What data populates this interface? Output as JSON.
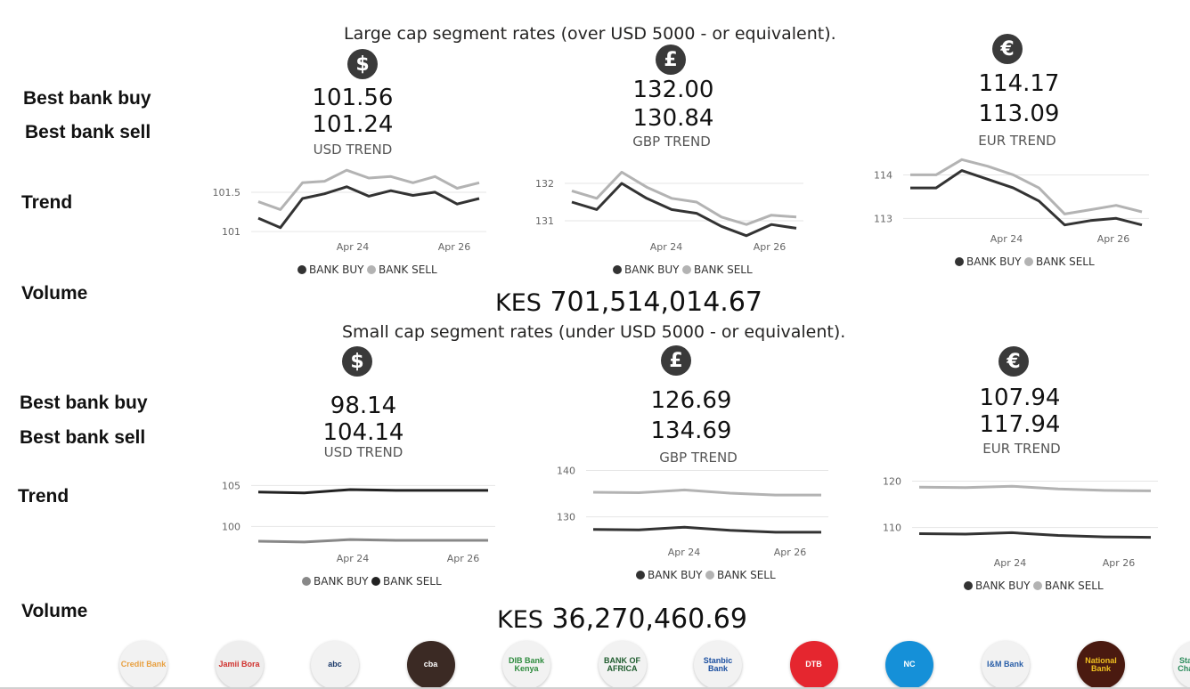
{
  "large": {
    "heading": "Large cap segment rates (over USD 5000 - or equivalent).",
    "row_labels": {
      "buy": "Best bank buy",
      "sell": "Best bank sell",
      "trend": "Trend",
      "volume": "Volume"
    },
    "usd": {
      "icon": "dollar-icon",
      "symbol": "$",
      "buy": "101.56",
      "sell": "101.24",
      "trend_label": "USD TREND"
    },
    "gbp": {
      "icon": "pound-icon",
      "symbol": "£",
      "buy": "132.00",
      "sell": "130.84",
      "trend_label": "GBP TREND"
    },
    "eur": {
      "icon": "euro-icon",
      "symbol": "€",
      "buy": "114.17",
      "sell": "113.09",
      "trend_label": "EUR TREND"
    },
    "volume": {
      "currency": "KES",
      "amount": "701,514,014.67"
    }
  },
  "small": {
    "heading": "Small cap segment rates (under USD 5000 - or equivalent).",
    "row_labels": {
      "buy": "Best bank buy",
      "sell": "Best bank sell",
      "trend": "Trend",
      "volume": "Volume"
    },
    "usd": {
      "icon": "dollar-icon",
      "symbol": "$",
      "buy": "98.14",
      "sell": "104.14",
      "trend_label": "USD TREND"
    },
    "gbp": {
      "icon": "pound-icon",
      "symbol": "£",
      "buy": "126.69",
      "sell": "134.69",
      "trend_label": "GBP TREND"
    },
    "eur": {
      "icon": "euro-icon",
      "symbol": "€",
      "buy": "107.94",
      "sell": "117.94",
      "trend_label": "EUR TREND"
    },
    "volume": {
      "currency": "KES",
      "amount": "36,270,460.69"
    }
  },
  "chart_data": [
    {
      "id": "large-usd",
      "type": "line",
      "x": [
        "Apr 22",
        "Apr 23",
        "Apr 23",
        "Apr 23",
        "Apr 24",
        "Apr 24",
        "Apr 25",
        "Apr 25",
        "Apr 26",
        "Apr 26",
        "Apr 26"
      ],
      "xticks": [
        "Apr 24",
        "Apr 26"
      ],
      "yticks": [
        101.0,
        101.5
      ],
      "ylim": [
        100.9,
        101.85
      ],
      "series": [
        {
          "name": "BANK BUY",
          "color": "#333333",
          "values": [
            101.17,
            101.05,
            101.42,
            101.48,
            101.57,
            101.45,
            101.52,
            101.46,
            101.5,
            101.35,
            101.42
          ]
        },
        {
          "name": "BANK SELL",
          "color": "#b3b3b3",
          "values": [
            101.38,
            101.28,
            101.62,
            101.64,
            101.78,
            101.68,
            101.7,
            101.62,
            101.7,
            101.55,
            101.62
          ]
        }
      ],
      "legend": [
        "BANK BUY",
        "BANK SELL"
      ]
    },
    {
      "id": "large-gbp",
      "type": "line",
      "x": [
        "Apr 22",
        "Apr 23",
        "Apr 23",
        "Apr 24",
        "Apr 24",
        "Apr 25",
        "Apr 25",
        "Apr 26",
        "Apr 26",
        "Apr 27"
      ],
      "xticks": [
        "Apr 24",
        "Apr 26"
      ],
      "yticks": [
        131,
        132
      ],
      "ylim": [
        130.5,
        132.5
      ],
      "series": [
        {
          "name": "BANK BUY",
          "color": "#333333",
          "values": [
            131.5,
            131.3,
            132.0,
            131.6,
            131.3,
            131.2,
            130.85,
            130.6,
            130.9,
            130.8
          ]
        },
        {
          "name": "BANK SELL",
          "color": "#b3b3b3",
          "values": [
            131.8,
            131.6,
            132.3,
            131.9,
            131.6,
            131.5,
            131.1,
            130.9,
            131.15,
            131.1
          ]
        }
      ],
      "legend": [
        "BANK BUY",
        "BANK SELL"
      ]
    },
    {
      "id": "large-eur",
      "type": "line",
      "x": [
        "Apr 22",
        "Apr 23",
        "Apr 23",
        "Apr 24",
        "Apr 24",
        "Apr 25",
        "Apr 25",
        "Apr 26",
        "Apr 26",
        "Apr 27"
      ],
      "xticks": [
        "Apr 24",
        "Apr 26"
      ],
      "yticks": [
        113,
        114
      ],
      "ylim": [
        112.7,
        114.5
      ],
      "series": [
        {
          "name": "BANK BUY",
          "color": "#333333",
          "values": [
            113.7,
            113.7,
            114.1,
            113.9,
            113.7,
            113.4,
            112.85,
            112.95,
            113.0,
            112.85
          ]
        },
        {
          "name": "BANK SELL",
          "color": "#b3b3b3",
          "values": [
            114.0,
            114.0,
            114.35,
            114.2,
            114.0,
            113.7,
            113.1,
            113.2,
            113.3,
            113.15
          ]
        }
      ],
      "legend": [
        "BANK BUY",
        "BANK SELL"
      ]
    },
    {
      "id": "small-usd",
      "type": "line",
      "x": [
        "Apr 22",
        "Apr 23",
        "Apr 24",
        "Apr 25",
        "Apr 26",
        "Apr 27"
      ],
      "xticks": [
        "Apr 24",
        "Apr 26"
      ],
      "yticks": [
        100,
        105
      ],
      "ylim": [
        97,
        107
      ],
      "series": [
        {
          "name": "BANK BUY",
          "color": "#888888",
          "values": [
            98.2,
            98.1,
            98.4,
            98.3,
            98.3,
            98.3
          ]
        },
        {
          "name": "BANK SELL",
          "color": "#222222",
          "values": [
            104.2,
            104.1,
            104.5,
            104.4,
            104.4,
            104.4
          ]
        }
      ],
      "legend": [
        "BANK BUY",
        "BANK SELL"
      ]
    },
    {
      "id": "small-gbp",
      "type": "line",
      "x": [
        "Apr 22",
        "Apr 23",
        "Apr 24",
        "Apr 25",
        "Apr 26",
        "Apr 27"
      ],
      "xticks": [
        "Apr 24",
        "Apr 26"
      ],
      "yticks": [
        130,
        140
      ],
      "ylim": [
        124,
        142
      ],
      "series": [
        {
          "name": "BANK BUY",
          "color": "#333333",
          "values": [
            127.3,
            127.2,
            127.8,
            127.1,
            126.7,
            126.7
          ]
        },
        {
          "name": "BANK SELL",
          "color": "#b3b3b3",
          "values": [
            135.3,
            135.2,
            135.8,
            135.1,
            134.7,
            134.7
          ]
        }
      ],
      "legend": [
        "BANK BUY",
        "BANK SELL"
      ]
    },
    {
      "id": "small-eur",
      "type": "line",
      "x": [
        "Apr 22",
        "Apr 23",
        "Apr 24",
        "Apr 25",
        "Apr 26",
        "Apr 27"
      ],
      "xticks": [
        "Apr 24",
        "Apr 26"
      ],
      "yticks": [
        110,
        120
      ],
      "ylim": [
        104,
        122
      ],
      "series": [
        {
          "name": "BANK BUY",
          "color": "#333333",
          "values": [
            108.7,
            108.6,
            108.9,
            108.3,
            108.0,
            107.9
          ]
        },
        {
          "name": "BANK SELL",
          "color": "#b3b3b3",
          "values": [
            118.7,
            118.6,
            118.9,
            118.3,
            118.0,
            117.9
          ]
        }
      ],
      "legend": [
        "BANK BUY",
        "BANK SELL"
      ]
    }
  ],
  "banks": [
    {
      "name": "Credit Bank",
      "color": "#e8a040",
      "bg": "#f2f2f2"
    },
    {
      "name": "Jamii Bora",
      "color": "#d0312d",
      "bg": "#eeeeee"
    },
    {
      "name": "abc",
      "color": "#1a3a6a",
      "bg": "#f2f2f2"
    },
    {
      "name": "cba",
      "color": "#ffffff",
      "bg": "#3b2a24"
    },
    {
      "name": "DIB Bank Kenya",
      "color": "#2e8b3e",
      "bg": "#f2f2f2"
    },
    {
      "name": "BANK OF AFRICA",
      "color": "#1f5c2e",
      "bg": "#f2f2f2"
    },
    {
      "name": "Stanbic Bank",
      "color": "#1b4fa0",
      "bg": "#f2f2f2"
    },
    {
      "name": "DTB",
      "color": "#ffffff",
      "bg": "#e5262f"
    },
    {
      "name": "NC",
      "color": "#ffffff",
      "bg": "#1590d8"
    },
    {
      "name": "I&M Bank",
      "color": "#2a5fa8",
      "bg": "#f2f2f2"
    },
    {
      "name": "National Bank",
      "color": "#f0c020",
      "bg": "#4a1a10"
    },
    {
      "name": "Standard Chartered",
      "color": "#2a8a5a",
      "bg": "#f2f2f2"
    }
  ]
}
